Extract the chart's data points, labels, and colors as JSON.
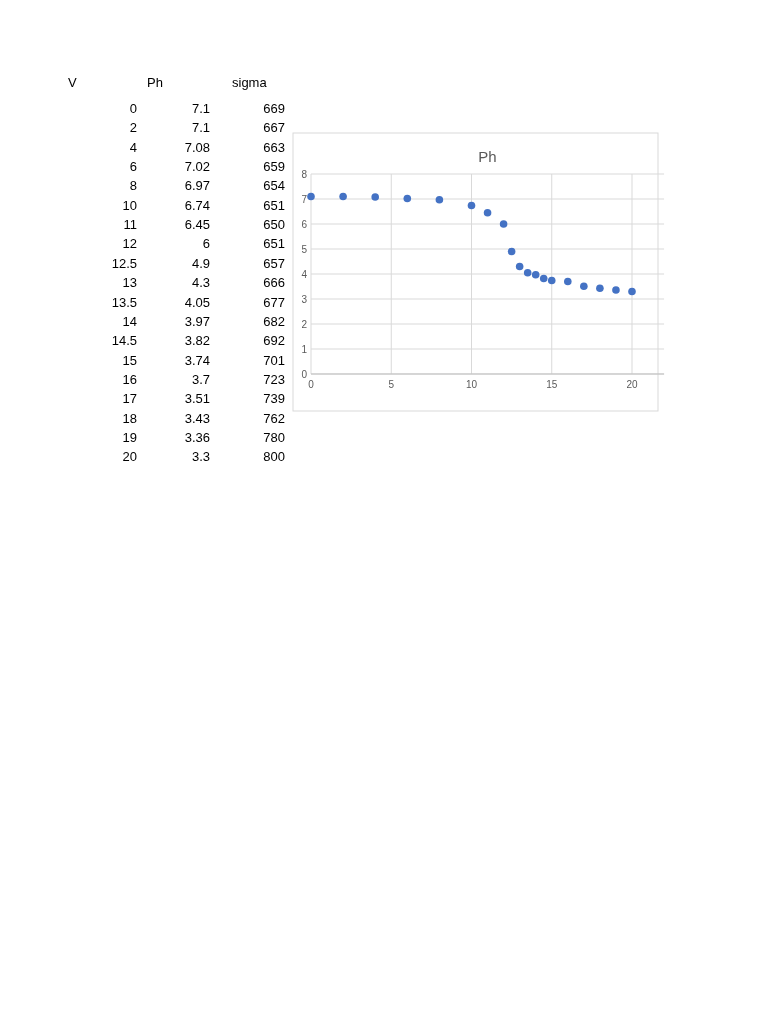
{
  "chart_data": [
    {
      "type": "other",
      "annotations": [
        "V",
        "Ph",
        "sigma",
        "0",
        "7.1",
        "669",
        "2",
        "7.1",
        "667",
        "4",
        "7.08",
        "663",
        "6",
        "7.02",
        "659",
        "8",
        "6.97",
        "654",
        "10",
        "6.74",
        "651",
        "11",
        "6.45",
        "650",
        "12",
        "6",
        "651",
        "12.5",
        "4.9",
        "657",
        "13",
        "4.3",
        "666",
        "13.5",
        "4.05",
        "677",
        "14",
        "3.97",
        "682",
        "14.5",
        "3.82",
        "692",
        "15",
        "3.74",
        "701",
        "16",
        "3.7",
        "723",
        "17",
        "3.51",
        "739",
        "18",
        "3.43",
        "762",
        "19",
        "3.36",
        "780",
        "20",
        "3.3",
        "800"
      ]
    },
    {
      "type": "scatter",
      "title": "Ph",
      "x": [
        0,
        2,
        4,
        6,
        8,
        10,
        11,
        12,
        12.5,
        13,
        13.5,
        14,
        14.5,
        15,
        16,
        17,
        18,
        19,
        20
      ],
      "values": [
        7.1,
        7.1,
        7.08,
        7.02,
        6.97,
        6.74,
        6.45,
        6,
        4.9,
        4.3,
        4.05,
        3.97,
        3.82,
        3.74,
        3.7,
        3.51,
        3.43,
        3.36,
        3.3
      ],
      "color": "#4472c4",
      "marker": "circle",
      "xlim": [
        0,
        22
      ],
      "ylim": [
        0,
        8
      ],
      "xticks": [
        0,
        5,
        10,
        15,
        20
      ],
      "yticks": [
        0,
        1,
        2,
        3,
        4,
        5,
        6,
        7,
        8
      ],
      "grid": true
    }
  ]
}
